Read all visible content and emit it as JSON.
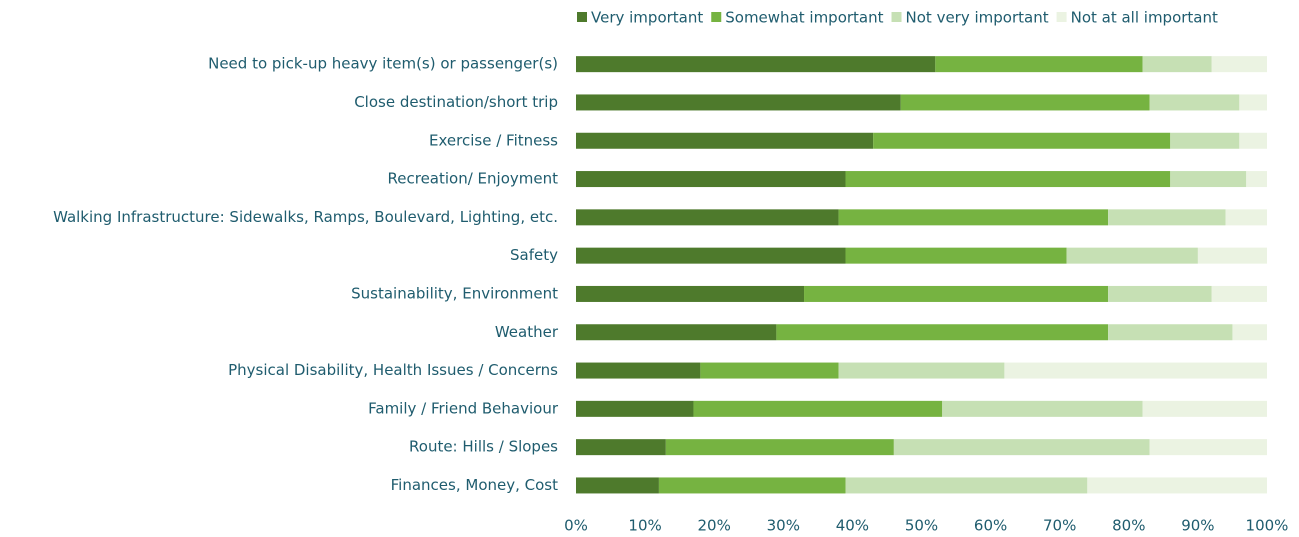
{
  "chart_data": {
    "type": "stacked_bar_horizontal",
    "categories": [
      "Need to pick-up heavy item(s) or passenger(s)",
      "Close destination/short trip",
      "Exercise / Fitness",
      "Recreation/ Enjoyment",
      "Walking Infrastructure: Sidewalks, Ramps, Boulevard, Lighting, etc.",
      "Safety",
      "Sustainability, Environment",
      "Weather",
      "Physical Disability, Health Issues / Concerns",
      "Family / Friend Behaviour",
      "Route: Hills / Slopes",
      "Finances, Money, Cost"
    ],
    "series": [
      {
        "name": "Very important",
        "color": "#4e7a2c",
        "values": [
          52,
          47,
          43,
          39,
          38,
          39,
          33,
          29,
          18,
          17,
          13,
          12
        ]
      },
      {
        "name": "Somewhat important",
        "color": "#76b341",
        "values": [
          30,
          36,
          43,
          47,
          39,
          32,
          44,
          48,
          20,
          36,
          33,
          27
        ]
      },
      {
        "name": "Not very important",
        "color": "#c6e0b4",
        "values": [
          10,
          13,
          10,
          11,
          17,
          19,
          15,
          18,
          24,
          29,
          37,
          35
        ]
      },
      {
        "name": "Not at all important",
        "color": "#ebf3e2",
        "values": [
          8,
          4,
          4,
          3,
          6,
          10,
          8,
          5,
          38,
          18,
          17,
          26
        ]
      }
    ],
    "xlim": [
      0,
      100
    ],
    "xticks": [
      {
        "value": 0,
        "label": "0%"
      },
      {
        "value": 10,
        "label": "10%"
      },
      {
        "value": 20,
        "label": "20%"
      },
      {
        "value": 30,
        "label": "30%"
      },
      {
        "value": 40,
        "label": "40%"
      },
      {
        "value": 50,
        "label": "50%"
      },
      {
        "value": 60,
        "label": "60%"
      },
      {
        "value": 70,
        "label": "70%"
      },
      {
        "value": 80,
        "label": "80%"
      },
      {
        "value": 90,
        "label": "90%"
      },
      {
        "value": 100,
        "label": "100%"
      }
    ],
    "legend": "top-right"
  }
}
